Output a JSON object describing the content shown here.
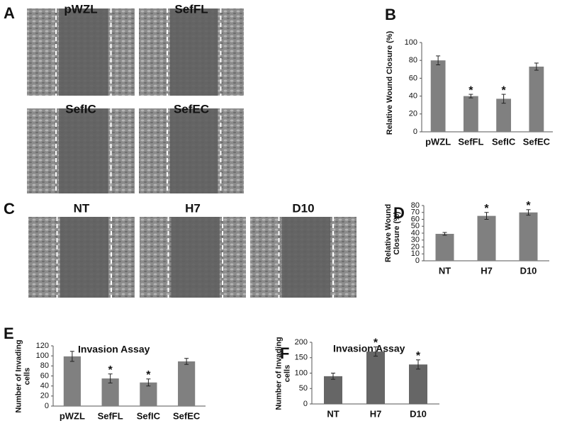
{
  "panels": [
    {
      "letter": "A",
      "images": [
        "pWZL",
        "SefFL",
        "SefIC",
        "SefEC"
      ]
    },
    {
      "letter": "C",
      "images": [
        "NT",
        "H7",
        "D10"
      ]
    }
  ],
  "chart_data": [
    {
      "type": "bar",
      "panel": "B",
      "ylabel": "Relative Wound Closure (%)",
      "categories": [
        "pWZL",
        "SefFL",
        "SefIC",
        "SefEC"
      ],
      "values": [
        80,
        40,
        37,
        73
      ],
      "errors": [
        5,
        2,
        5,
        4
      ],
      "markers": [
        null,
        "*",
        "*",
        null
      ],
      "color": "#808080",
      "ylim": [
        0,
        100
      ],
      "yticks": [
        0,
        20,
        40,
        60,
        80,
        100
      ]
    },
    {
      "type": "bar",
      "panel": "D",
      "ylabel": "Relative Wound Closure (%)",
      "categories": [
        "NT",
        "H7",
        "D10"
      ],
      "values": [
        39,
        65,
        70
      ],
      "errors": [
        2,
        5,
        4
      ],
      "markers": [
        null,
        "*",
        "*"
      ],
      "color": "#808080",
      "ylim": [
        0,
        80
      ],
      "yticks": [
        0,
        10,
        20,
        30,
        40,
        50,
        60,
        70,
        80
      ]
    },
    {
      "type": "bar",
      "panel": "E",
      "title": "Invasion Assay",
      "ylabel": "Number of Invading cells",
      "categories": [
        "pWZL",
        "SefFL",
        "SefIC",
        "SefEC"
      ],
      "values": [
        99,
        55,
        47,
        89
      ],
      "errors": [
        10,
        9,
        7,
        6
      ],
      "markers": [
        null,
        "*",
        "*",
        null
      ],
      "color": "#808080",
      "ylim": [
        0,
        120
      ],
      "yticks": [
        0,
        20,
        40,
        60,
        80,
        100,
        120
      ]
    },
    {
      "type": "bar",
      "panel": "F",
      "title": "Invasion Assay",
      "ylabel": "Number of Invading cells",
      "categories": [
        "NT",
        "H7",
        "D10"
      ],
      "values": [
        90,
        170,
        128
      ],
      "errors": [
        10,
        15,
        15
      ],
      "markers": [
        null,
        "*",
        "*"
      ],
      "color": "#666666",
      "ylim": [
        0,
        200
      ],
      "yticks": [
        0,
        50,
        100,
        150,
        200
      ]
    }
  ]
}
